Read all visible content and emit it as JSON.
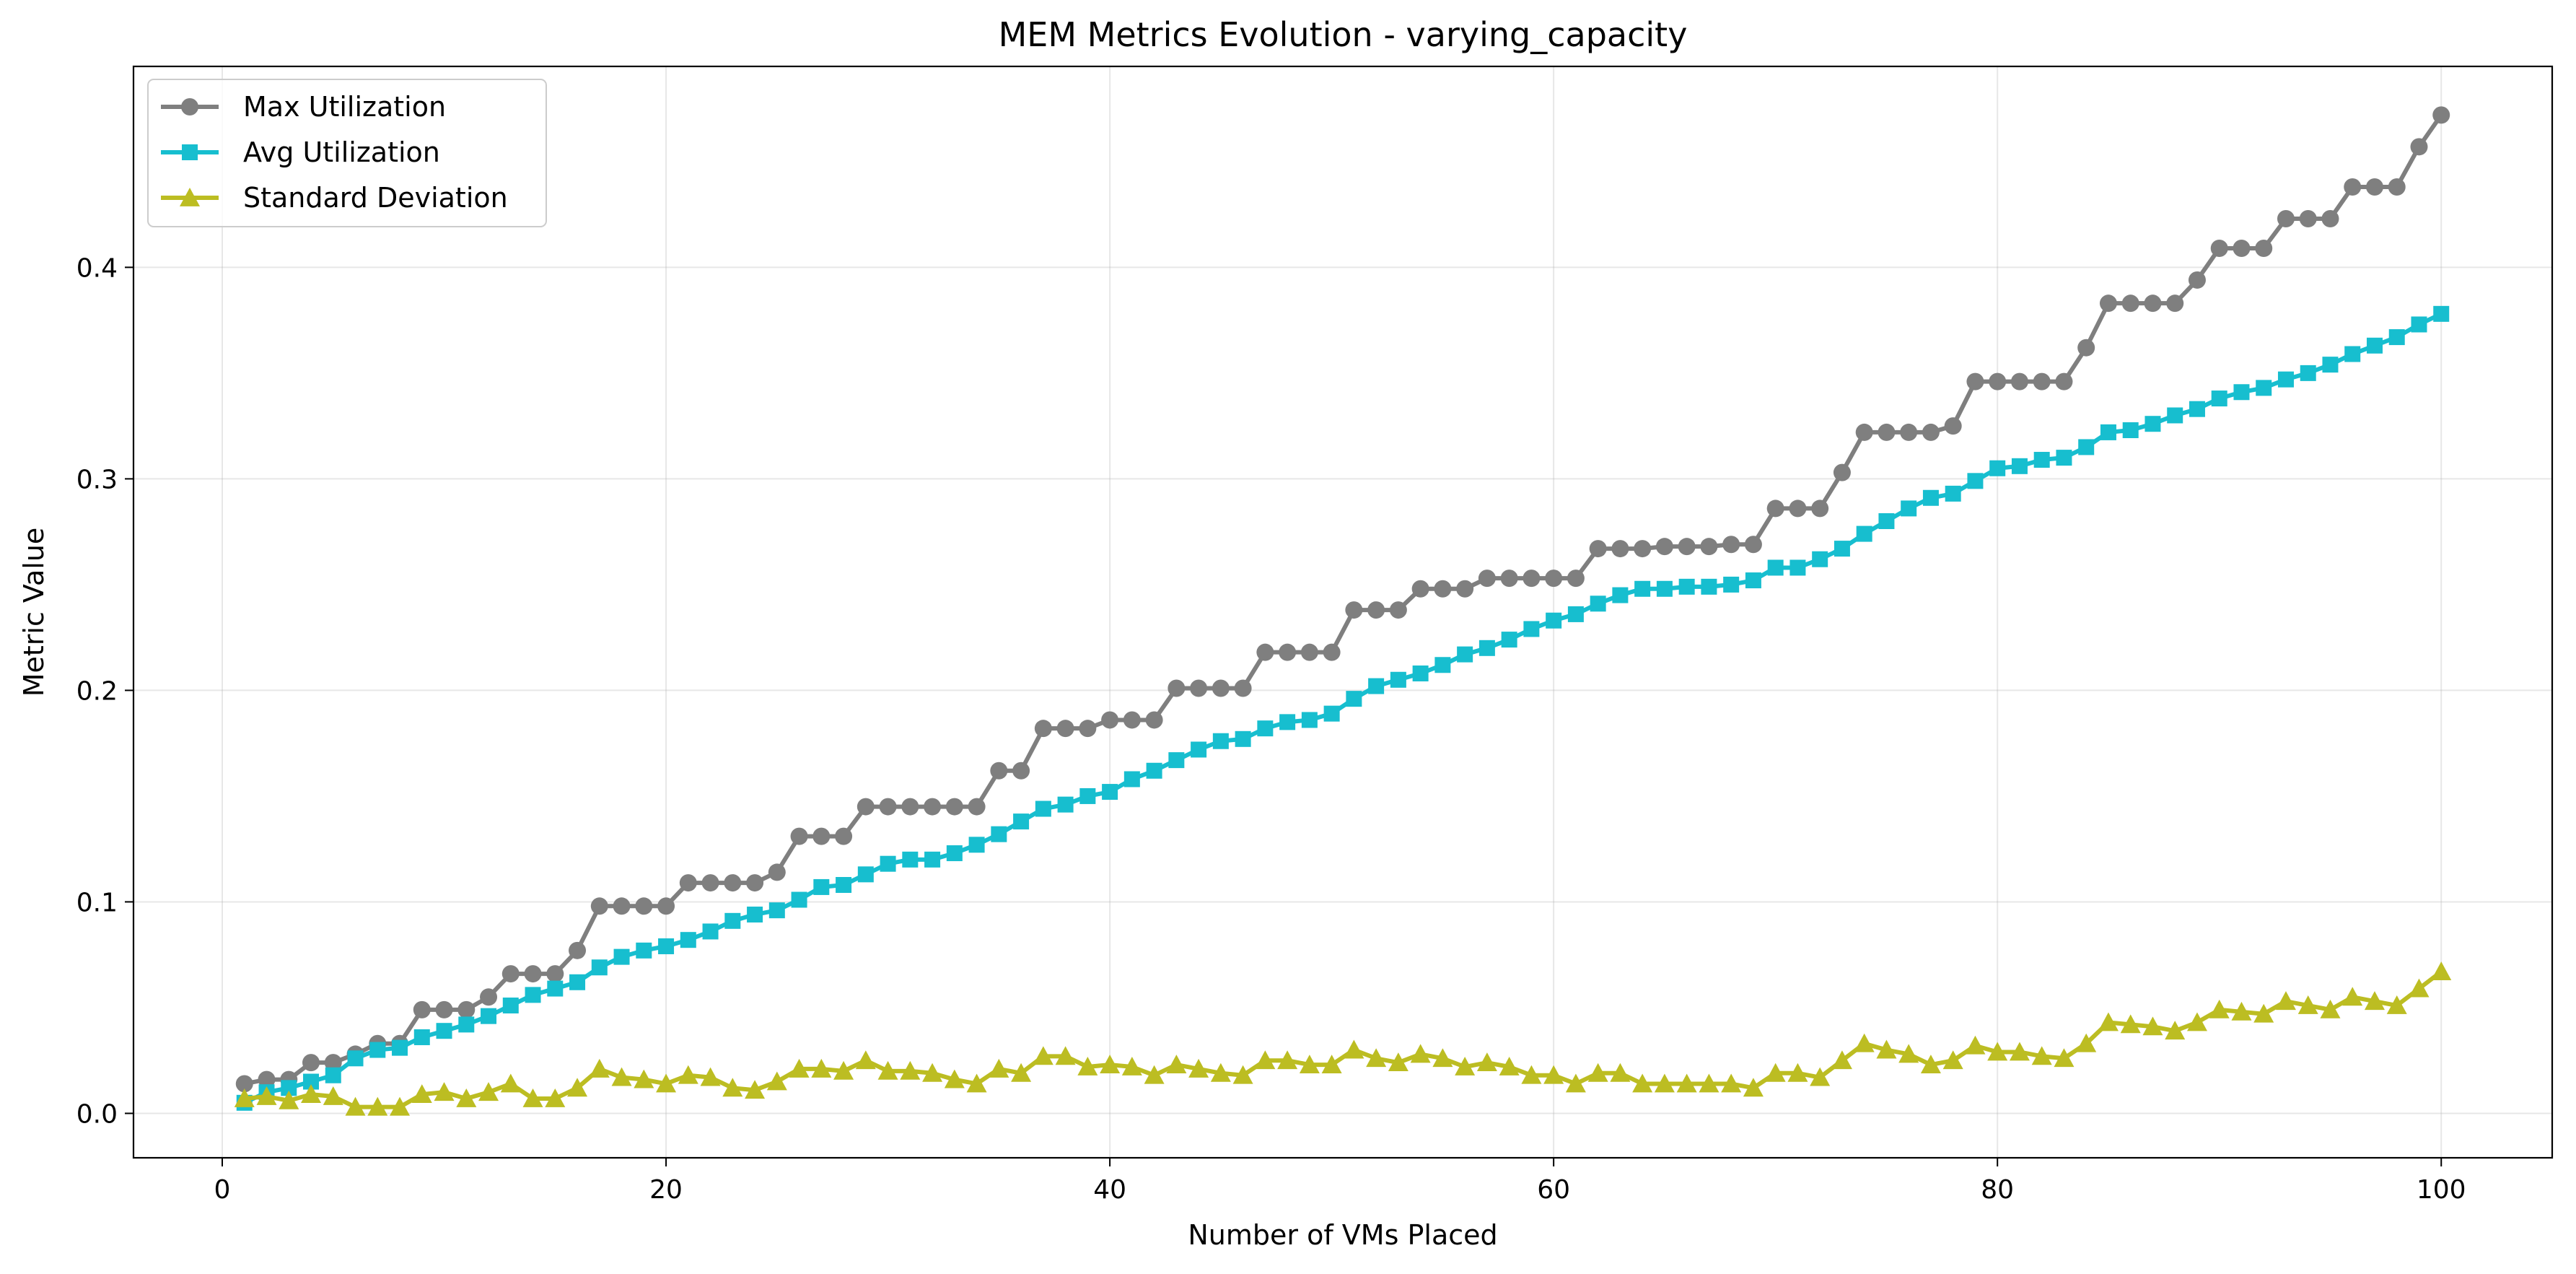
{
  "chart_data": {
    "type": "line",
    "title": "MEM Metrics Evolution - varying_capacity",
    "xlabel": "Number of VMs Placed",
    "ylabel": "Metric Value",
    "xlim": [
      -4,
      105
    ],
    "ylim": [
      -0.021,
      0.495
    ],
    "xticks": [
      0,
      20,
      40,
      60,
      80,
      100
    ],
    "yticks": [
      0.0,
      0.1,
      0.2,
      0.3,
      0.4
    ],
    "ytick_labels": [
      "0.0",
      "0.1",
      "0.2",
      "0.3",
      "0.4"
    ],
    "grid": true,
    "legend_position": "top-left",
    "x": [
      1,
      2,
      3,
      4,
      5,
      6,
      7,
      8,
      9,
      10,
      11,
      12,
      13,
      14,
      15,
      16,
      17,
      18,
      19,
      20,
      21,
      22,
      23,
      24,
      25,
      26,
      27,
      28,
      29,
      30,
      31,
      32,
      33,
      34,
      35,
      36,
      37,
      38,
      39,
      40,
      41,
      42,
      43,
      44,
      45,
      46,
      47,
      48,
      49,
      50,
      51,
      52,
      53,
      54,
      55,
      56,
      57,
      58,
      59,
      60,
      61,
      62,
      63,
      64,
      65,
      66,
      67,
      68,
      69,
      70,
      71,
      72,
      73,
      74,
      75,
      76,
      77,
      78,
      79,
      80,
      81,
      82,
      83,
      84,
      85,
      86,
      87,
      88,
      89,
      90,
      91,
      92,
      93,
      94,
      95,
      96,
      97,
      98,
      99,
      100
    ],
    "series": [
      {
        "name": "Max Utilization",
        "color": "#7f7f7f",
        "marker": "circle",
        "values": [
          0.014,
          0.016,
          0.016,
          0.024,
          0.024,
          0.028,
          0.033,
          0.033,
          0.049,
          0.049,
          0.049,
          0.055,
          0.066,
          0.066,
          0.066,
          0.077,
          0.098,
          0.098,
          0.098,
          0.098,
          0.109,
          0.109,
          0.109,
          0.109,
          0.114,
          0.131,
          0.131,
          0.131,
          0.145,
          0.145,
          0.145,
          0.145,
          0.145,
          0.145,
          0.162,
          0.162,
          0.182,
          0.182,
          0.182,
          0.186,
          0.186,
          0.186,
          0.201,
          0.201,
          0.201,
          0.201,
          0.218,
          0.218,
          0.218,
          0.218,
          0.238,
          0.238,
          0.238,
          0.248,
          0.248,
          0.248,
          0.253,
          0.253,
          0.253,
          0.253,
          0.253,
          0.267,
          0.267,
          0.267,
          0.268,
          0.268,
          0.268,
          0.269,
          0.269,
          0.286,
          0.286,
          0.286,
          0.303,
          0.322,
          0.322,
          0.322,
          0.322,
          0.325,
          0.346,
          0.346,
          0.346,
          0.346,
          0.346,
          0.362,
          0.383,
          0.383,
          0.383,
          0.383,
          0.394,
          0.409,
          0.409,
          0.409,
          0.423,
          0.423,
          0.423,
          0.438,
          0.438,
          0.438,
          0.457,
          0.472
        ]
      },
      {
        "name": "Avg Utilization",
        "color": "#17becf",
        "marker": "square",
        "values": [
          0.005,
          0.01,
          0.012,
          0.015,
          0.018,
          0.026,
          0.03,
          0.031,
          0.036,
          0.039,
          0.042,
          0.046,
          0.051,
          0.056,
          0.059,
          0.062,
          0.069,
          0.074,
          0.077,
          0.079,
          0.082,
          0.086,
          0.091,
          0.094,
          0.096,
          0.101,
          0.107,
          0.108,
          0.113,
          0.118,
          0.12,
          0.12,
          0.123,
          0.127,
          0.132,
          0.138,
          0.144,
          0.146,
          0.15,
          0.152,
          0.158,
          0.162,
          0.167,
          0.172,
          0.176,
          0.177,
          0.182,
          0.185,
          0.186,
          0.189,
          0.196,
          0.202,
          0.205,
          0.208,
          0.212,
          0.217,
          0.22,
          0.224,
          0.229,
          0.233,
          0.236,
          0.241,
          0.245,
          0.248,
          0.248,
          0.249,
          0.249,
          0.25,
          0.252,
          0.258,
          0.258,
          0.262,
          0.267,
          0.274,
          0.28,
          0.286,
          0.291,
          0.293,
          0.299,
          0.305,
          0.306,
          0.309,
          0.31,
          0.315,
          0.322,
          0.323,
          0.326,
          0.33,
          0.333,
          0.338,
          0.341,
          0.343,
          0.347,
          0.35,
          0.354,
          0.359,
          0.363,
          0.367,
          0.373,
          0.378
        ]
      },
      {
        "name": "Standard Deviation",
        "color": "#bcbd22",
        "marker": "triangle",
        "values": [
          0.007,
          0.008,
          0.006,
          0.009,
          0.008,
          0.003,
          0.003,
          0.003,
          0.009,
          0.01,
          0.007,
          0.01,
          0.014,
          0.007,
          0.007,
          0.012,
          0.021,
          0.017,
          0.016,
          0.014,
          0.018,
          0.017,
          0.012,
          0.011,
          0.015,
          0.021,
          0.021,
          0.02,
          0.025,
          0.02,
          0.02,
          0.019,
          0.016,
          0.014,
          0.021,
          0.019,
          0.027,
          0.027,
          0.022,
          0.023,
          0.022,
          0.018,
          0.023,
          0.021,
          0.019,
          0.018,
          0.025,
          0.025,
          0.023,
          0.023,
          0.03,
          0.026,
          0.024,
          0.028,
          0.026,
          0.022,
          0.024,
          0.022,
          0.018,
          0.018,
          0.014,
          0.019,
          0.019,
          0.014,
          0.014,
          0.014,
          0.014,
          0.014,
          0.012,
          0.019,
          0.019,
          0.017,
          0.025,
          0.033,
          0.03,
          0.028,
          0.023,
          0.025,
          0.032,
          0.029,
          0.029,
          0.027,
          0.026,
          0.033,
          0.043,
          0.042,
          0.041,
          0.039,
          0.043,
          0.049,
          0.048,
          0.047,
          0.053,
          0.051,
          0.049,
          0.055,
          0.053,
          0.051,
          0.059,
          0.067
        ]
      }
    ]
  }
}
